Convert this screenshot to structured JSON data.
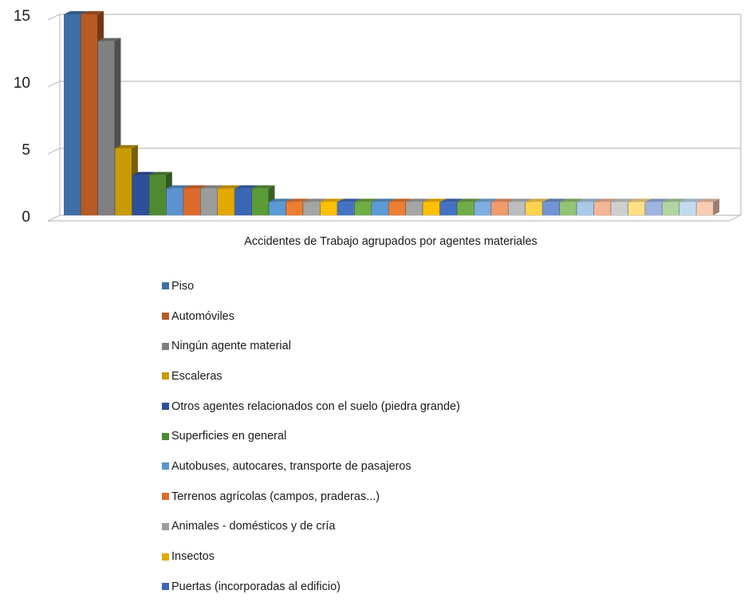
{
  "chart_data": {
    "type": "bar",
    "style": "3d-column",
    "xlabel": "Accidentes de Trabajo agrupados por agentes materiales",
    "ylim": [
      0,
      15
    ],
    "yticks": [
      0,
      5,
      10,
      15
    ],
    "grid": true,
    "legend_position": "bottom",
    "series": [
      {
        "name": "Piso",
        "value": 15,
        "color": "#3d6fa6"
      },
      {
        "name": "Automóviles",
        "value": 15,
        "color": "#b75a24"
      },
      {
        "name": "Ningún agente material",
        "value": 13,
        "color": "#808080"
      },
      {
        "name": "Escaleras",
        "value": 5,
        "color": "#c79a06"
      },
      {
        "name": "Otros agentes relacionados con el suelo (piedra grande)",
        "value": 3,
        "color": "#2e4f9a"
      },
      {
        "name": "Superficies en general",
        "value": 3,
        "color": "#4f8a31"
      },
      {
        "name": "Autobuses, autocares, transporte de pasajeros",
        "value": 2,
        "color": "#5a93cf"
      },
      {
        "name": "Terrenos agrícolas (campos, praderas...)",
        "value": 2,
        "color": "#dc6a2a"
      },
      {
        "name": "Animales - domésticos y de cría",
        "value": 2,
        "color": "#9c9c9c"
      },
      {
        "name": "Insectos",
        "value": 2,
        "color": "#e5a800"
      },
      {
        "name": "Puertas (incorporadas al edificio)",
        "value": 2,
        "color": "#3a66b6"
      },
      {
        "name": "",
        "value": 2,
        "color": "#5c9c38"
      },
      {
        "name": "",
        "value": 1,
        "color": "#5b9bd5"
      },
      {
        "name": "",
        "value": 1,
        "color": "#ed7d31"
      },
      {
        "name": "",
        "value": 1,
        "color": "#a5a5a5"
      },
      {
        "name": "",
        "value": 1,
        "color": "#ffc000"
      },
      {
        "name": "",
        "value": 1,
        "color": "#4472c4"
      },
      {
        "name": "",
        "value": 1,
        "color": "#70ad47"
      },
      {
        "name": "",
        "value": 1,
        "color": "#5b9bd5"
      },
      {
        "name": "",
        "value": 1,
        "color": "#ed7d31"
      },
      {
        "name": "",
        "value": 1,
        "color": "#a5a5a5"
      },
      {
        "name": "",
        "value": 1,
        "color": "#ffc000"
      },
      {
        "name": "",
        "value": 1,
        "color": "#4472c4"
      },
      {
        "name": "",
        "value": 1,
        "color": "#70ad47"
      },
      {
        "name": "",
        "value": 1,
        "color": "#7cafe0"
      },
      {
        "name": "",
        "value": 1,
        "color": "#f19a6a"
      },
      {
        "name": "",
        "value": 1,
        "color": "#bdbdbd"
      },
      {
        "name": "",
        "value": 1,
        "color": "#ffd24d"
      },
      {
        "name": "",
        "value": 1,
        "color": "#7094d6"
      },
      {
        "name": "",
        "value": 1,
        "color": "#93c376"
      },
      {
        "name": "",
        "value": 1,
        "color": "#a9c9ea"
      },
      {
        "name": "",
        "value": 1,
        "color": "#f5b697"
      },
      {
        "name": "",
        "value": 1,
        "color": "#cfcfcf"
      },
      {
        "name": "",
        "value": 1,
        "color": "#ffdf86"
      },
      {
        "name": "",
        "value": 1,
        "color": "#9fb4e3"
      },
      {
        "name": "",
        "value": 1,
        "color": "#b2d5a1"
      },
      {
        "name": "",
        "value": 1,
        "color": "#c3dbf0"
      },
      {
        "name": "",
        "value": 1,
        "color": "#f8cbb2"
      }
    ]
  }
}
